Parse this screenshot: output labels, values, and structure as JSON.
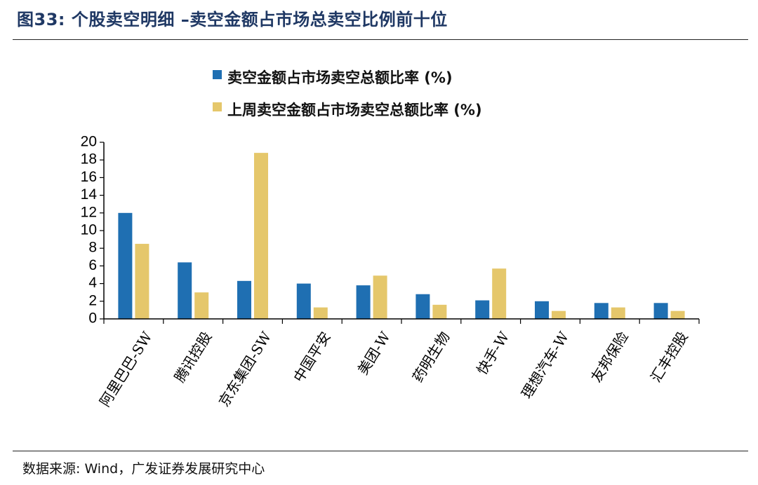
{
  "title": "图33:  个股卖空明细  –卖空金额占市场总卖空比例前十位",
  "source": "数据来源:  Wind，广发证券发展研究中心",
  "chart_data": {
    "type": "bar",
    "categories": [
      "阿里巴巴-SW",
      "腾讯控股",
      "京东集团-SW",
      "中国平安",
      "美团-W",
      "药明生物",
      "快手-W",
      "理想汽车-W",
      "友邦保险",
      "汇丰控股"
    ],
    "series": [
      {
        "name": "卖空金额占市场卖空总额比率 (%)",
        "color": "#1f6fb2",
        "values": [
          12.0,
          6.4,
          4.3,
          4.0,
          3.8,
          2.8,
          2.1,
          2.0,
          1.8,
          1.8
        ]
      },
      {
        "name": "上周卖空金额占市场卖空总额比率 (%)",
        "color": "#e5c76b",
        "values": [
          8.5,
          3.0,
          18.8,
          1.3,
          4.9,
          1.6,
          5.7,
          0.9,
          1.3,
          0.9
        ]
      }
    ],
    "yticks": [
      "0",
      "2",
      "4",
      "6",
      "8",
      "10",
      "12",
      "14",
      "16",
      "18",
      "20"
    ],
    "ylim": [
      0,
      20
    ],
    "grid": false,
    "legend": "top-center"
  }
}
